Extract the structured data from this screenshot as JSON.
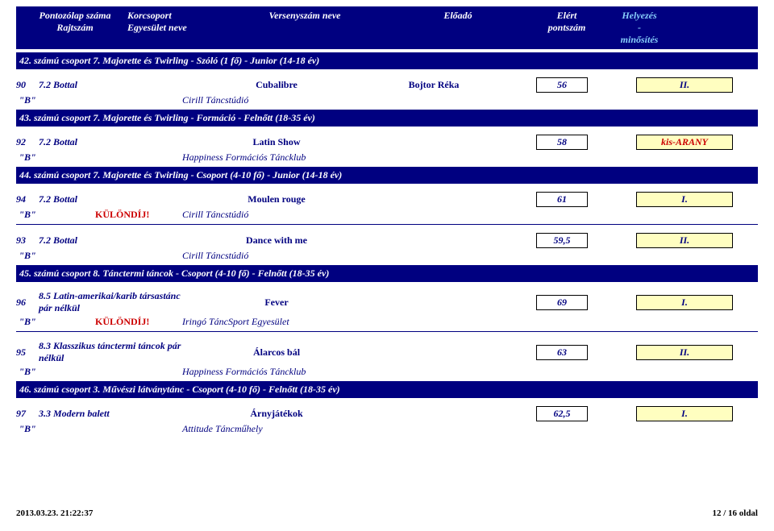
{
  "header": {
    "col1a": "Pontozólap száma",
    "col1b": "Rajtszám",
    "col2a": "Korcsoport",
    "col2b": "Egyesület neve",
    "col3": "Versenyszám neve",
    "col4": "Előadó",
    "col5a": "Elért",
    "col5b": "pontszám",
    "col6a": "Helyezés",
    "col6b": "-",
    "col6c": "minősítés"
  },
  "groups": [
    {
      "title": "42. számú csoport  7. Majorette és Twirling - Szóló (1 fő) - Junior (14-18 év)",
      "entries": [
        {
          "num": "90",
          "cat": "7.2 Bottal",
          "title": "Cubalibre",
          "performer": "Bojtor Réka",
          "score": "56",
          "place": "II.",
          "placeRed": false,
          "b": "\"B\"",
          "special": "",
          "club": "Cirill Táncstúdió"
        }
      ]
    },
    {
      "title": "43. számú csoport  7. Majorette és Twirling - Formáció - Felnőtt (18-35 év)",
      "entries": [
        {
          "num": "92",
          "cat": "7.2 Bottal",
          "title": "Latin Show",
          "performer": "",
          "score": "58",
          "place": "kis-ARANY",
          "placeRed": true,
          "b": "\"B\"",
          "special": "",
          "club": "Happiness Formációs Táncklub"
        }
      ]
    },
    {
      "title": "44. számú csoport  7. Majorette és Twirling - Csoport (4-10 fő) - Junior (14-18 év)",
      "entries": [
        {
          "num": "94",
          "cat": "7.2 Bottal",
          "title": "Moulen rouge",
          "performer": "",
          "score": "61",
          "place": "I.",
          "placeRed": false,
          "b": "\"B\"",
          "special": "KÜLÖNDÍJ!",
          "club": "Cirill Táncstúdió"
        },
        {
          "num": "93",
          "cat": "7.2 Bottal",
          "title": "Dance with me",
          "performer": "",
          "score": "59,5",
          "place": "II.",
          "placeRed": false,
          "b": "\"B\"",
          "special": "",
          "club": "Cirill Táncstúdió"
        }
      ]
    },
    {
      "title": "45. számú csoport  8. Tánctermi táncok - Csoport (4-10 fő) - Felnőtt (18-35 év)",
      "entries": [
        {
          "num": "96",
          "cat": "8.5 Latin-amerikai/karib társastánc pár nélkül",
          "title": "Fever",
          "performer": "",
          "score": "69",
          "place": "I.",
          "placeRed": false,
          "b": "\"B\"",
          "special": "KÜLÖNDÍJ!",
          "club": "Iringó TáncSport Egyesület"
        },
        {
          "num": "95",
          "cat": "8.3 Klasszikus tánctermi táncok pár nélkül",
          "title": "Álarcos bál",
          "performer": "",
          "score": "63",
          "place": "II.",
          "placeRed": false,
          "b": "\"B\"",
          "special": "",
          "club": "Happiness Formációs Táncklub"
        }
      ]
    },
    {
      "title": "46. számú csoport  3. Művészi látványtánc - Csoport (4-10 fő) - Felnőtt (18-35 év)",
      "entries": [
        {
          "num": "97",
          "cat": "3.3 Modern balett",
          "title": "Árnyjátékok",
          "performer": "",
          "score": "62,5",
          "place": "I.",
          "placeRed": false,
          "b": "\"B\"",
          "special": "",
          "club": "Attitude Táncműhely"
        }
      ]
    }
  ],
  "footer": {
    "left": "2013.03.23. 21:22:37",
    "right": "12 / 16 oldal"
  }
}
